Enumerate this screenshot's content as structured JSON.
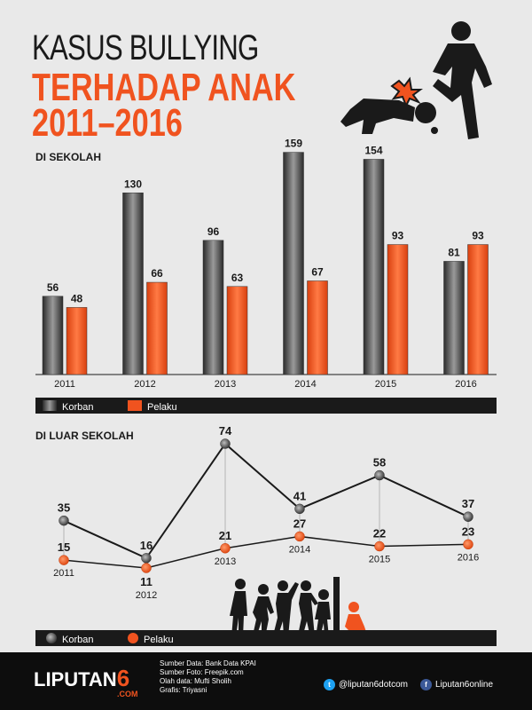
{
  "title": {
    "line1": "KASUS BULLYING",
    "line2": "TERHADAP ANAK",
    "line3": "2011–2016"
  },
  "colors": {
    "korban": "#5a5a5a",
    "pelaku": "#f0531f",
    "dark": "#1a1a1a",
    "background": "#e9e9e9"
  },
  "chart_data": [
    {
      "type": "bar",
      "title": "DI SEKOLAH",
      "categories": [
        "2011",
        "2012",
        "2013",
        "2014",
        "2015",
        "2016"
      ],
      "series": [
        {
          "name": "Korban",
          "values": [
            56,
            130,
            96,
            159,
            154,
            81
          ]
        },
        {
          "name": "Pelaku",
          "values": [
            48,
            66,
            63,
            67,
            93,
            93
          ]
        }
      ],
      "ylim": [
        0,
        160
      ],
      "grid": false,
      "legend": "bottom-left"
    },
    {
      "type": "line",
      "title": "DI LUAR SEKOLAH",
      "categories": [
        "2011",
        "2012",
        "2013",
        "2014",
        "2015",
        "2016"
      ],
      "series": [
        {
          "name": "Korban",
          "values": [
            35,
            16,
            74,
            41,
            58,
            37
          ]
        },
        {
          "name": "Pelaku",
          "values": [
            15,
            11,
            21,
            27,
            22,
            23
          ]
        }
      ],
      "ylim": [
        0,
        80
      ],
      "grid": false,
      "legend": "bottom-left"
    }
  ],
  "footer": {
    "brand": "LIPUTAN",
    "brand_six": "6",
    "brand_com": ".COM",
    "credits": [
      "Sumber Data: Bank Data KPAI",
      "Sumber Foto: Freepik.com",
      "Olah data: Mufti Sholih",
      "Grafis: Triyasni"
    ],
    "twitter": "@liputan6dotcom",
    "facebook": "Liputan6online",
    "twitter_icon": "twitter-icon",
    "facebook_icon": "facebook-icon"
  }
}
